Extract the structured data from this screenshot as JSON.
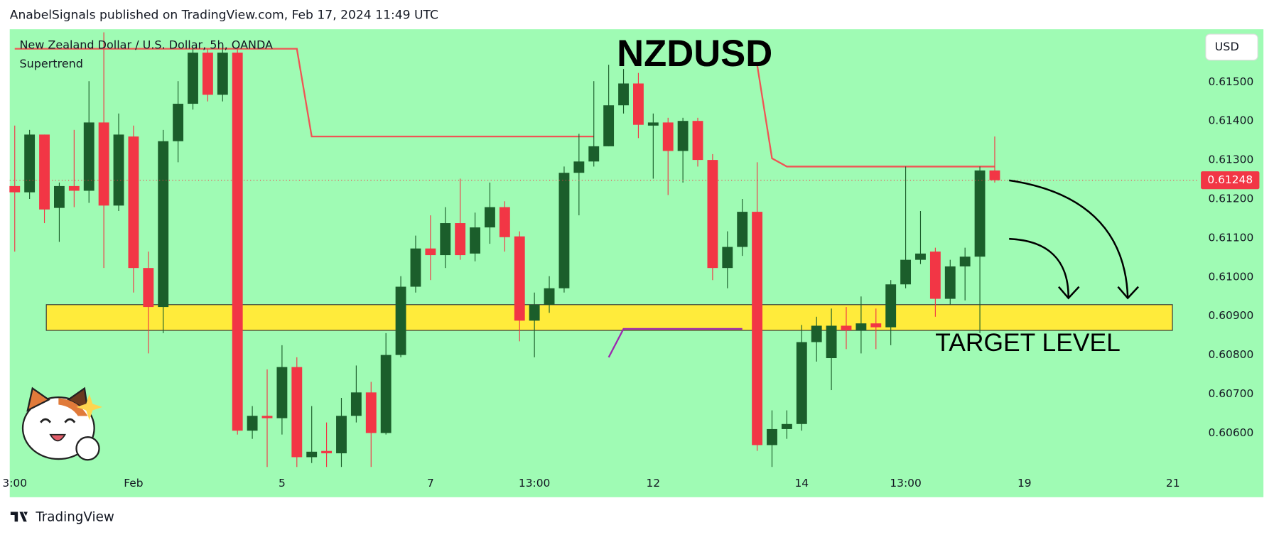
{
  "header": {
    "published": "AnabelSignals published on TradingView.com, Feb 17, 2024 11:49 UTC",
    "brand": "TradingView"
  },
  "chart_data": {
    "type": "candlestick",
    "title": "NZDUSD",
    "subtitle": "New Zealand Dollar / U.S. Dollar, 5h, OANDA",
    "currency": "USD",
    "annotation": "TARGET LEVEL",
    "background": "#9ffbb4",
    "up_color": "#1b5e2b",
    "down_color": "#f23645",
    "grid": false,
    "categories": [
      "3:00",
      null,
      null,
      null,
      null,
      null,
      null,
      null,
      "Feb",
      null,
      null,
      null,
      null,
      null,
      null,
      null,
      null,
      null,
      "5",
      null,
      null,
      null,
      null,
      null,
      null,
      null,
      null,
      null,
      "7",
      null,
      null,
      null,
      null,
      null,
      null,
      "13:00",
      null,
      null,
      null,
      null,
      null,
      null,
      null,
      "12",
      null,
      null,
      null,
      null,
      null,
      null,
      null,
      null,
      null,
      "14",
      null,
      null,
      null,
      null,
      null,
      null,
      "13:00",
      null,
      null,
      null,
      null,
      null,
      null,
      null,
      "19",
      null,
      null,
      null,
      null,
      null,
      null,
      null,
      null,
      null,
      "21",
      null
    ],
    "open": [
      0.61233,
      0.61217,
      0.61365,
      0.61177,
      0.61233,
      0.61221,
      0.61396,
      0.61183,
      0.6136,
      0.61023,
      0.60923,
      0.61348,
      0.61444,
      0.61575,
      0.61467,
      0.61575,
      0.60606,
      0.60644,
      0.60638,
      0.60769,
      0.60538,
      0.60554,
      0.60548,
      0.60644,
      0.60704,
      0.606,
      0.608,
      0.60975,
      0.61073,
      0.61056,
      0.61138,
      0.6106,
      0.61127,
      0.61179,
      0.61104,
      0.60888,
      0.60929,
      0.60971,
      0.61267,
      0.61296,
      0.61335,
      0.6144,
      0.61496,
      0.61388,
      0.61396,
      0.61323,
      0.614,
      0.613,
      0.61023,
      0.61077,
      0.61167,
      0.60569,
      0.6061,
      0.60623,
      0.60833,
      0.60792,
      0.60875,
      0.60863,
      0.60881,
      0.60871,
      0.60981,
      0.61044,
      0.61065,
      0.60944,
      0.61027,
      0.61052,
      0.61273,
      null,
      null,
      null,
      null,
      null,
      null,
      null,
      null,
      null,
      null,
      null,
      null,
      null
    ],
    "high": [
      0.61388,
      0.61377,
      0.61365,
      0.61242,
      0.61377,
      0.61502,
      0.61627,
      0.61419,
      0.61388,
      0.61065,
      0.61377,
      0.61502,
      0.61585,
      0.61585,
      0.61585,
      0.61585,
      0.60669,
      0.60763,
      0.60825,
      0.60794,
      0.60669,
      0.60627,
      0.6069,
      0.60773,
      0.60731,
      0.60856,
      0.61002,
      0.61106,
      0.61158,
      0.61179,
      0.61252,
      0.61165,
      0.61242,
      0.61194,
      0.61117,
      0.6096,
      0.61002,
      0.61283,
      0.61367,
      0.61502,
      0.61544,
      0.61533,
      0.61523,
      0.61419,
      0.61408,
      0.61408,
      0.61408,
      0.61315,
      0.61117,
      0.612,
      0.61294,
      0.60658,
      0.60658,
      0.60877,
      0.60898,
      0.60919,
      0.60923,
      0.6095,
      0.60919,
      0.60992,
      0.61283,
      0.61169,
      0.61075,
      0.61044,
      0.61075,
      0.61283,
      0.6136,
      null,
      null,
      null,
      null,
      null,
      null,
      null,
      null,
      null,
      null,
      null,
      null,
      null
    ],
    "low": [
      0.61065,
      0.612,
      0.61138,
      0.6109,
      0.61179,
      0.6119,
      0.61023,
      0.61169,
      0.6096,
      0.60804,
      0.60856,
      0.61294,
      0.61429,
      0.6145,
      0.6145,
      0.60596,
      0.60585,
      0.60513,
      0.60596,
      0.60513,
      0.60523,
      0.60513,
      0.60513,
      0.60627,
      0.60513,
      0.60596,
      0.60794,
      0.6096,
      0.60992,
      0.61023,
      0.61044,
      0.6104,
      0.61085,
      0.61065,
      0.60835,
      0.60794,
      0.60908,
      0.6096,
      0.61158,
      0.61283,
      0.61335,
      0.61419,
      0.61356,
      0.61252,
      0.6121,
      0.61242,
      0.61283,
      0.60992,
      0.60971,
      0.61054,
      0.60554,
      0.60513,
      0.60585,
      0.60606,
      0.60783,
      0.6071,
      0.60815,
      0.60804,
      0.60815,
      0.60825,
      0.60971,
      0.61033,
      0.60898,
      0.60929,
      0.6094,
      0.60856,
      0.61242,
      null,
      null,
      null,
      null,
      null,
      null,
      null,
      null,
      null,
      null,
      null,
      null,
      null
    ],
    "close": [
      0.61217,
      0.61365,
      0.61173,
      0.61233,
      0.61221,
      0.61396,
      0.61183,
      0.61365,
      0.61023,
      0.60923,
      0.61348,
      0.61444,
      0.61575,
      0.61467,
      0.61575,
      0.60606,
      0.60644,
      0.60638,
      0.60769,
      0.60538,
      0.60552,
      0.60548,
      0.60644,
      0.60704,
      0.606,
      0.608,
      0.60975,
      0.61073,
      0.61056,
      0.61138,
      0.61056,
      0.61127,
      0.61179,
      0.61102,
      0.60888,
      0.60929,
      0.60971,
      0.61267,
      0.61296,
      0.61335,
      0.6144,
      0.61496,
      0.6139,
      0.61396,
      0.61323,
      0.614,
      0.613,
      0.61023,
      0.61077,
      0.61167,
      0.60569,
      0.6061,
      0.60623,
      0.60833,
      0.60875,
      0.60875,
      0.60863,
      0.60881,
      0.60871,
      0.60981,
      0.61044,
      0.6106,
      0.60944,
      0.61027,
      0.61052,
      0.61273,
      0.61248,
      null,
      null,
      null,
      null,
      null,
      null,
      null,
      null,
      null,
      null,
      null,
      null,
      null
    ],
    "series": [
      {
        "name": "Supertrend",
        "color": "#f05454",
        "values": [
          0.61585,
          0.61585,
          0.61585,
          0.61585,
          0.61585,
          0.61585,
          0.61585,
          0.61585,
          0.61585,
          0.61585,
          0.61585,
          0.61585,
          0.61585,
          0.61585,
          0.61585,
          0.61585,
          0.61585,
          0.61585,
          0.61585,
          0.61585,
          0.6136,
          0.6136,
          0.6136,
          0.6136,
          0.6136,
          0.6136,
          0.6136,
          0.6136,
          0.6136,
          0.6136,
          0.6136,
          0.6136,
          0.6136,
          0.6136,
          0.6136,
          0.6136,
          0.6136,
          0.6136,
          0.6136,
          0.6136,
          null,
          null,
          null,
          null,
          null,
          null,
          null,
          null,
          null,
          null,
          0.61544,
          0.61304,
          0.61283,
          0.61283,
          0.61283,
          0.61283,
          0.61283,
          0.61283,
          0.61283,
          0.61283,
          0.61283,
          0.61283,
          0.61283,
          0.61283,
          0.61283,
          0.61283,
          0.61283,
          null,
          null,
          null,
          null,
          null,
          null,
          null,
          null,
          null,
          null,
          null,
          null,
          null
        ]
      },
      {
        "color": "#9c27b0",
        "values": [
          null,
          null,
          null,
          null,
          null,
          null,
          null,
          null,
          null,
          null,
          null,
          null,
          null,
          null,
          null,
          null,
          null,
          null,
          null,
          null,
          null,
          null,
          null,
          null,
          null,
          null,
          null,
          null,
          null,
          null,
          null,
          null,
          null,
          null,
          null,
          null,
          null,
          null,
          null,
          null,
          0.60794,
          0.60867,
          0.60867,
          0.60867,
          0.60867,
          0.60867,
          0.60867,
          0.60867,
          0.60867,
          0.60867,
          null,
          null,
          null,
          null,
          null,
          null,
          null,
          null,
          null,
          null,
          null,
          null,
          null,
          null,
          null,
          null,
          null,
          null,
          null,
          null,
          null,
          null,
          null,
          null,
          null,
          null,
          null,
          null,
          null,
          null
        ]
      }
    ],
    "last_price": 0.61248,
    "last_price_color": "#f23645",
    "target_zone": [
      0.60863,
      0.60929
    ],
    "target_zone_color": "#ffeb3b",
    "ylim": [
      0.60502,
      0.61635
    ],
    "yticks": [
      {
        "value": 0.615,
        "label": "0.61500"
      },
      {
        "value": 0.614,
        "label": "0.61400"
      },
      {
        "value": 0.613,
        "label": "0.61300"
      },
      {
        "value": 0.612,
        "label": "0.61200"
      },
      {
        "value": 0.611,
        "label": "0.61100"
      },
      {
        "value": 0.61,
        "label": "0.61000"
      },
      {
        "value": 0.609,
        "label": "0.60900"
      },
      {
        "value": 0.608,
        "label": "0.60800"
      },
      {
        "value": 0.607,
        "label": "0.60700"
      },
      {
        "value": 0.606,
        "label": "0.60600"
      }
    ]
  }
}
